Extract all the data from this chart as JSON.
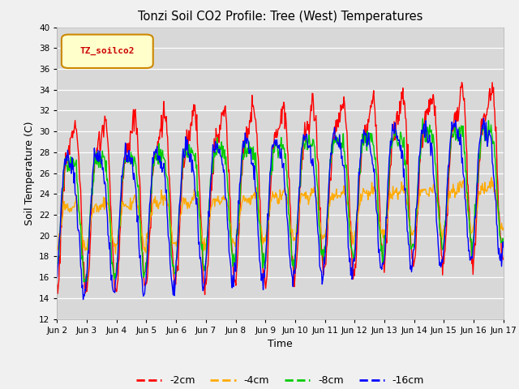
{
  "title": "Tonzi Soil CO2 Profile: Tree (West) Temperatures",
  "xlabel": "Time",
  "ylabel": "Soil Temperature (C)",
  "ylim": [
    12,
    40
  ],
  "xlim": [
    0,
    15
  ],
  "tick_labels": [
    "Jun 2",
    "Jun 3",
    "Jun 4",
    "Jun 5",
    "Jun 6",
    "Jun 7",
    "Jun 8",
    "Jun 9",
    "Jun 10",
    "Jun 11",
    "Jun 12",
    "Jun 13",
    "Jun 14",
    "Jun 15",
    "Jun 16",
    "Jun 17"
  ],
  "legend_label": "TZ_soilco2",
  "series_labels": [
    "-2cm",
    "-4cm",
    "-8cm",
    "-16cm"
  ],
  "series_colors": [
    "#ff0000",
    "#ffaa00",
    "#00cc00",
    "#0000ff"
  ],
  "fig_facecolor": "#f0f0f0",
  "plot_bg_color": "#d8d8d8",
  "yticks": [
    12,
    14,
    16,
    18,
    20,
    22,
    24,
    26,
    28,
    30,
    32,
    34,
    36,
    38,
    40
  ],
  "days": 15,
  "pts_per_day": 48
}
